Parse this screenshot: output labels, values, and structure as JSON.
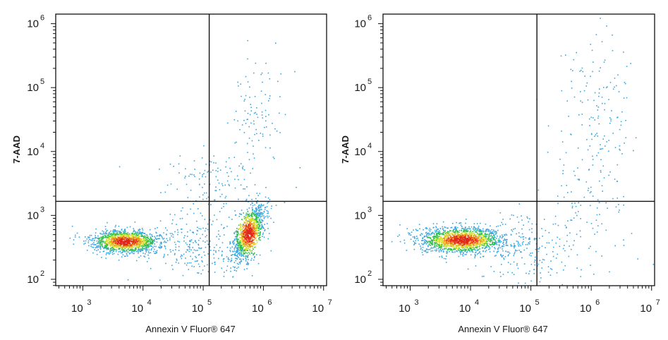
{
  "chart_data": [
    {
      "type": "scatter",
      "title": "",
      "xlabel": "Annexin V Fluor® 647",
      "ylabel": "7-AAD",
      "xscale": "log",
      "yscale": "log",
      "xlim_exp": [
        2.55,
        7.05
      ],
      "ylim_exp": [
        1.9,
        6.15
      ],
      "x_ticks": [
        {
          "base": "10",
          "exp": "3",
          "value": 3
        },
        {
          "base": "10",
          "exp": "4",
          "value": 4
        },
        {
          "base": "10",
          "exp": "5",
          "value": 5
        },
        {
          "base": "10",
          "exp": "6",
          "value": 6
        },
        {
          "base": "10",
          "exp": "7",
          "value": 7
        }
      ],
      "y_ticks": [
        {
          "base": "10",
          "exp": "2",
          "value": 2
        },
        {
          "base": "10",
          "exp": "3",
          "value": 3
        },
        {
          "base": "10",
          "exp": "4",
          "value": 4
        },
        {
          "base": "10",
          "exp": "5",
          "value": 5
        },
        {
          "base": "10",
          "exp": "6",
          "value": 6
        }
      ],
      "gates": {
        "x": 5.1,
        "y": 3.22
      },
      "grid": false,
      "legend": "none",
      "populations": [
        {
          "cx": 3.7,
          "cy": 2.6,
          "sx": 0.28,
          "sy": 0.09,
          "n": 1400,
          "peak": 1.0
        },
        {
          "cx": 5.75,
          "cy": 2.72,
          "sx": 0.13,
          "sy": 0.22,
          "n": 1100,
          "peak": 1.0,
          "corr": 0.6
        },
        {
          "cx": 5.85,
          "cy": 4.6,
          "sx": 0.22,
          "sy": 0.4,
          "n": 90,
          "peak": 0.15
        },
        {
          "cx": 5.3,
          "cy": 3.4,
          "sx": 0.5,
          "sy": 0.35,
          "n": 160,
          "peak": 0.1
        },
        {
          "cx": 4.8,
          "cy": 2.5,
          "sx": 0.4,
          "sy": 0.25,
          "n": 220,
          "peak": 0.15
        }
      ]
    },
    {
      "type": "scatter",
      "title": "",
      "xlabel": "Annexin V Fluor® 647",
      "ylabel": "7-AAD",
      "xscale": "log",
      "yscale": "log",
      "xlim_exp": [
        2.55,
        7.05
      ],
      "ylim_exp": [
        1.9,
        6.15
      ],
      "x_ticks": [
        {
          "base": "10",
          "exp": "3",
          "value": 3
        },
        {
          "base": "10",
          "exp": "4",
          "value": 4
        },
        {
          "base": "10",
          "exp": "5",
          "value": 5
        },
        {
          "base": "10",
          "exp": "6",
          "value": 6
        },
        {
          "base": "10",
          "exp": "7",
          "value": 7
        }
      ],
      "y_ticks": [
        {
          "base": "10",
          "exp": "2",
          "value": 2
        },
        {
          "base": "10",
          "exp": "3",
          "value": 3
        },
        {
          "base": "10",
          "exp": "4",
          "value": 4
        },
        {
          "base": "10",
          "exp": "5",
          "value": 5
        },
        {
          "base": "10",
          "exp": "6",
          "value": 6
        }
      ],
      "gates": {
        "x": 5.1,
        "y": 3.22
      },
      "grid": false,
      "legend": "none",
      "populations": [
        {
          "cx": 3.85,
          "cy": 2.62,
          "sx": 0.35,
          "sy": 0.1,
          "n": 1700,
          "peak": 1.0
        },
        {
          "cx": 6.1,
          "cy": 4.6,
          "sx": 0.28,
          "sy": 0.6,
          "n": 140,
          "peak": 0.1
        },
        {
          "cx": 5.9,
          "cy": 3.2,
          "sx": 0.35,
          "sy": 0.5,
          "n": 110,
          "peak": 0.1
        },
        {
          "cx": 4.9,
          "cy": 2.5,
          "sx": 0.35,
          "sy": 0.3,
          "n": 200,
          "peak": 0.15
        }
      ]
    }
  ]
}
